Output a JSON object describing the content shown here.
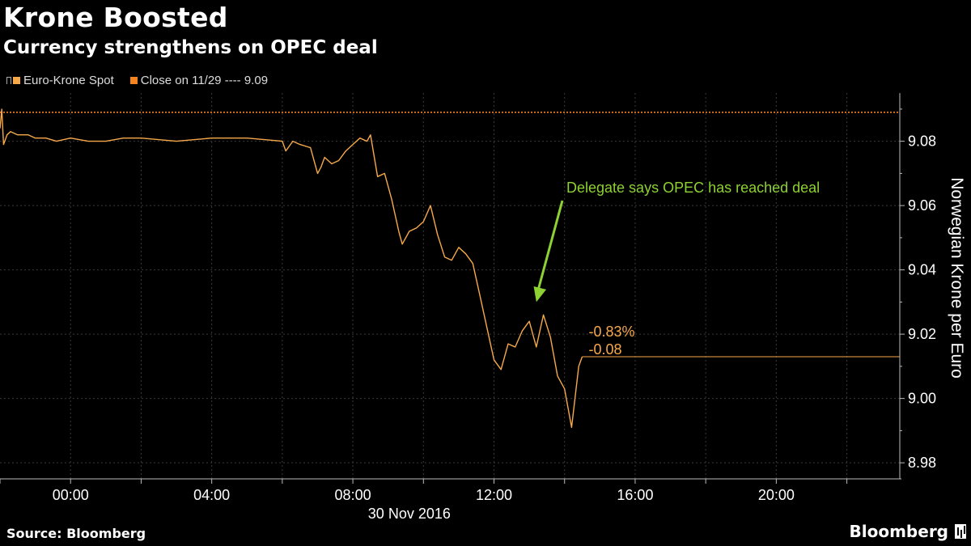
{
  "header": {
    "title": "Krone Boosted",
    "subtitle": "Currency strengthens on OPEC deal"
  },
  "legend": {
    "spot_label": "Euro-Krone Spot",
    "close_label": "Close on 11/29 ---- 9.09"
  },
  "footer": {
    "source": "Source: Bloomberg",
    "brand": "Bloomberg"
  },
  "colors": {
    "background": "#000000",
    "series": "#f7a94a",
    "close_line": "#f5831f",
    "annotation": "#8dd132",
    "grid": "#3a3a3a",
    "axis_text": "#ffffff"
  },
  "chart_data": {
    "type": "line",
    "title": "Krone Boosted",
    "subtitle": "Currency strengthens on OPEC deal",
    "xlabel": "30 Nov 2016",
    "ylabel": "Norwegian Krone per Euro",
    "x_unit": "hours (Nov 30, 2016)",
    "xlim": [
      -2,
      23.5
    ],
    "ylim": [
      8.975,
      9.095
    ],
    "x_ticks": [
      {
        "x": 0,
        "label": "00:00"
      },
      {
        "x": 4,
        "label": "04:00"
      },
      {
        "x": 8,
        "label": "08:00"
      },
      {
        "x": 12,
        "label": "12:00"
      },
      {
        "x": 16,
        "label": "16:00"
      },
      {
        "x": 20,
        "label": "20:00"
      }
    ],
    "y_ticks": [
      8.98,
      9.0,
      9.02,
      9.04,
      9.06,
      9.08
    ],
    "y_tick_labels": [
      "8.98",
      "9.00",
      "9.02",
      "9.04",
      "9.06",
      "9.08"
    ],
    "grid": true,
    "legend_position": "top-left",
    "reference_line": {
      "name": "Close on 11/29",
      "y": 9.089
    },
    "series": [
      {
        "name": "Euro-Krone Spot",
        "x": [
          -2,
          -1.95,
          -1.9,
          -1.8,
          -1.7,
          -1.5,
          -1.2,
          -1.0,
          -0.7,
          -0.4,
          0,
          0.5,
          1,
          1.5,
          2,
          3,
          4,
          5,
          6,
          6.1,
          6.3,
          6.5,
          6.8,
          7.0,
          7.1,
          7.2,
          7.4,
          7.6,
          7.8,
          8.0,
          8.2,
          8.4,
          8.5,
          8.7,
          8.9,
          9.1,
          9.3,
          9.4,
          9.6,
          9.8,
          10.0,
          10.2,
          10.4,
          10.6,
          10.8,
          11.0,
          11.2,
          11.4,
          11.6,
          11.8,
          12.0,
          12.2,
          12.4,
          12.6,
          12.8,
          13.0,
          13.2,
          13.4,
          13.6,
          13.8,
          14.0,
          14.2,
          14.4,
          14.5
        ],
        "y": [
          9.084,
          9.09,
          9.079,
          9.082,
          9.083,
          9.082,
          9.082,
          9.081,
          9.081,
          9.08,
          9.081,
          9.08,
          9.08,
          9.081,
          9.081,
          9.08,
          9.081,
          9.081,
          9.08,
          9.077,
          9.08,
          9.079,
          9.078,
          9.07,
          9.072,
          9.075,
          9.073,
          9.074,
          9.077,
          9.079,
          9.081,
          9.08,
          9.082,
          9.069,
          9.07,
          9.062,
          9.052,
          9.048,
          9.052,
          9.053,
          9.055,
          9.06,
          9.051,
          9.044,
          9.043,
          9.047,
          9.045,
          9.042,
          9.032,
          9.022,
          9.012,
          9.009,
          9.017,
          9.016,
          9.021,
          9.024,
          9.016,
          9.026,
          9.019,
          9.007,
          9.003,
          8.991,
          9.01,
          9.013
        ]
      }
    ],
    "annotations": [
      {
        "text": "Delegate says OPEC has reached deal",
        "arrow_to": {
          "x": 13.2,
          "y": 9.03
        }
      },
      {
        "text": "-0.83%"
      },
      {
        "text": "-0.08"
      }
    ],
    "last_value": 9.013
  }
}
